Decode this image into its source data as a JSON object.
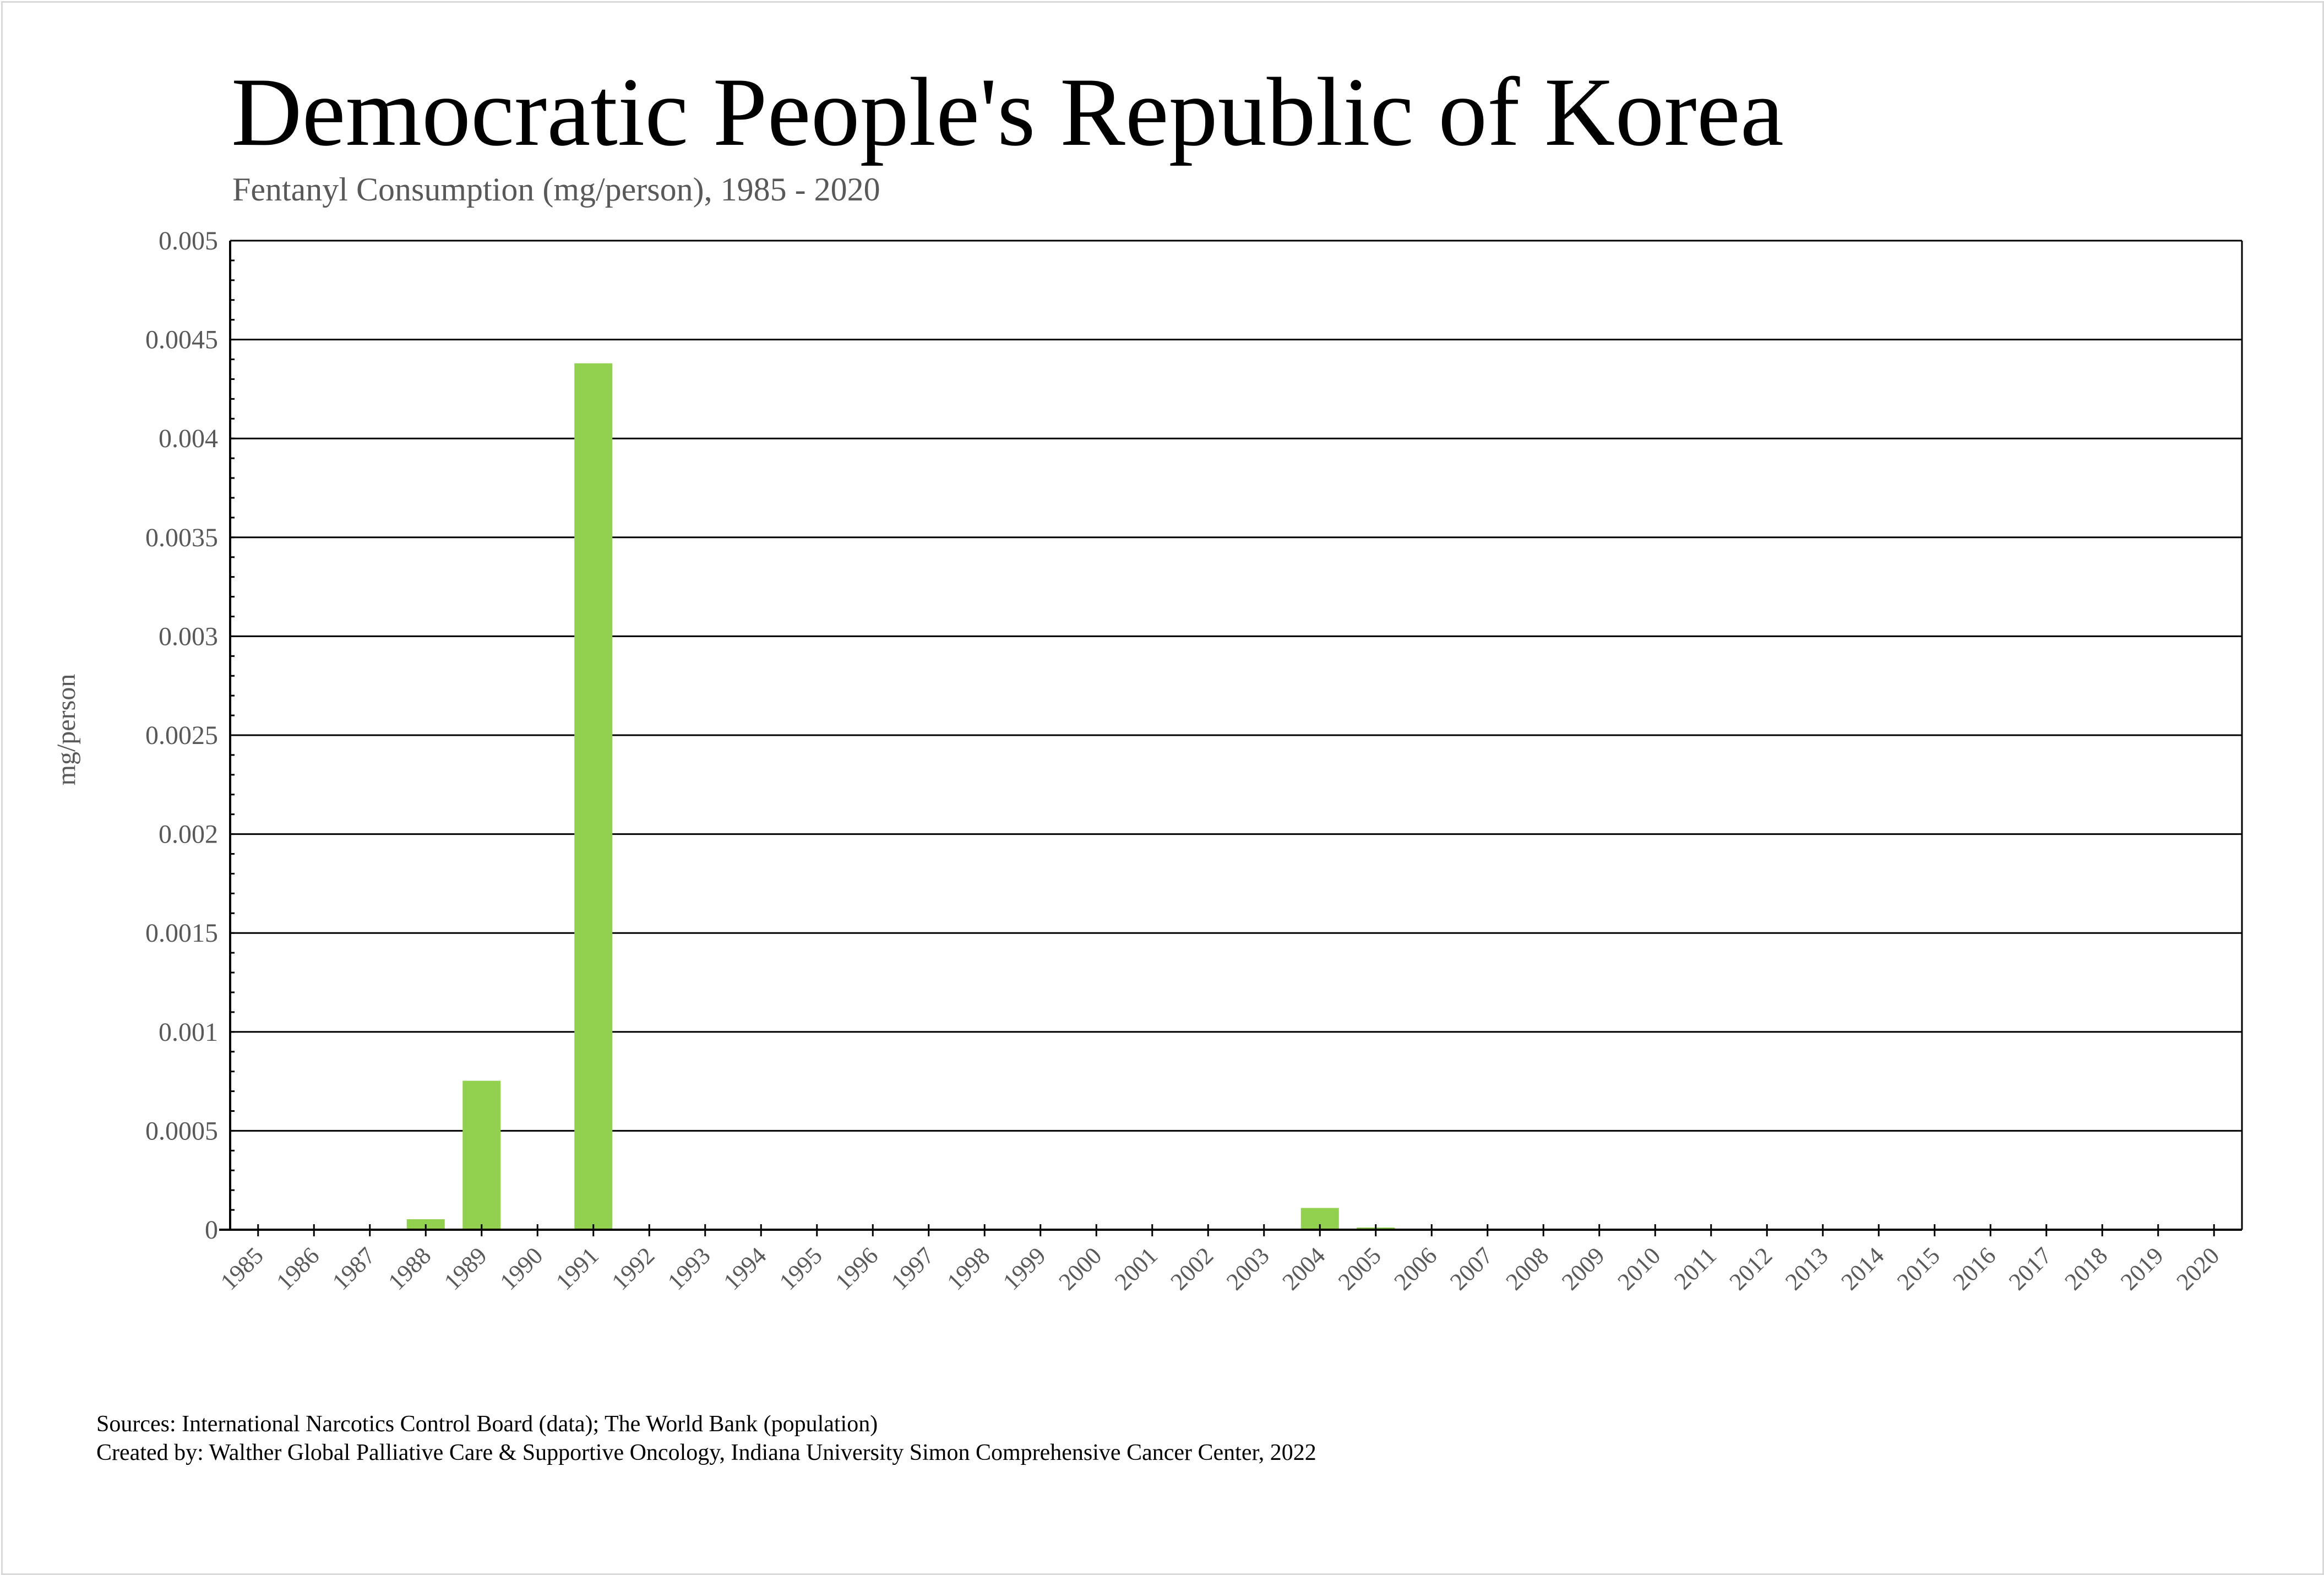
{
  "header": {
    "title": "Democratic People's Republic of Korea",
    "subtitle": "Fentanyl Consumption (mg/person), 1985 - 2020"
  },
  "footer": {
    "sources": "Sources: International Narcotics Control Board (data); The World Bank (population)",
    "created_by": "Created by: Walther Global Palliative Care & Supportive Oncology, Indiana University Simon Comprehensive Cancer Center, 2022"
  },
  "chart_data": {
    "type": "bar",
    "title": "Democratic People's Republic of Korea",
    "subtitle": "Fentanyl Consumption (mg/person), 1985 - 2020",
    "xlabel": "",
    "ylabel": "mg/person",
    "ylim": [
      0,
      0.005
    ],
    "yticks": [
      "0",
      "0.0005",
      "0.001",
      "0.0015",
      "0.002",
      "0.0025",
      "0.003",
      "0.0035",
      "0.004",
      "0.0045",
      "0.005"
    ],
    "grid": true,
    "bar_color": "#92d050",
    "categories": [
      "1985",
      "1986",
      "1987",
      "1988",
      "1989",
      "1990",
      "1991",
      "1992",
      "1993",
      "1994",
      "1995",
      "1996",
      "1997",
      "1998",
      "1999",
      "2000",
      "2001",
      "2002",
      "2003",
      "2004",
      "2005",
      "2006",
      "2007",
      "2008",
      "2009",
      "2010",
      "2011",
      "2012",
      "2013",
      "2014",
      "2015",
      "2016",
      "2017",
      "2018",
      "2019",
      "2020"
    ],
    "values": [
      0,
      0,
      0,
      5.3e-05,
      0.000753,
      0,
      0.00438,
      0,
      0,
      0,
      0,
      0,
      0,
      0,
      0,
      0,
      0,
      0,
      0,
      0.00011,
      1.1e-05,
      0,
      0,
      0,
      0,
      0,
      0,
      0,
      0,
      0,
      0,
      0,
      0,
      0,
      0,
      0
    ]
  }
}
